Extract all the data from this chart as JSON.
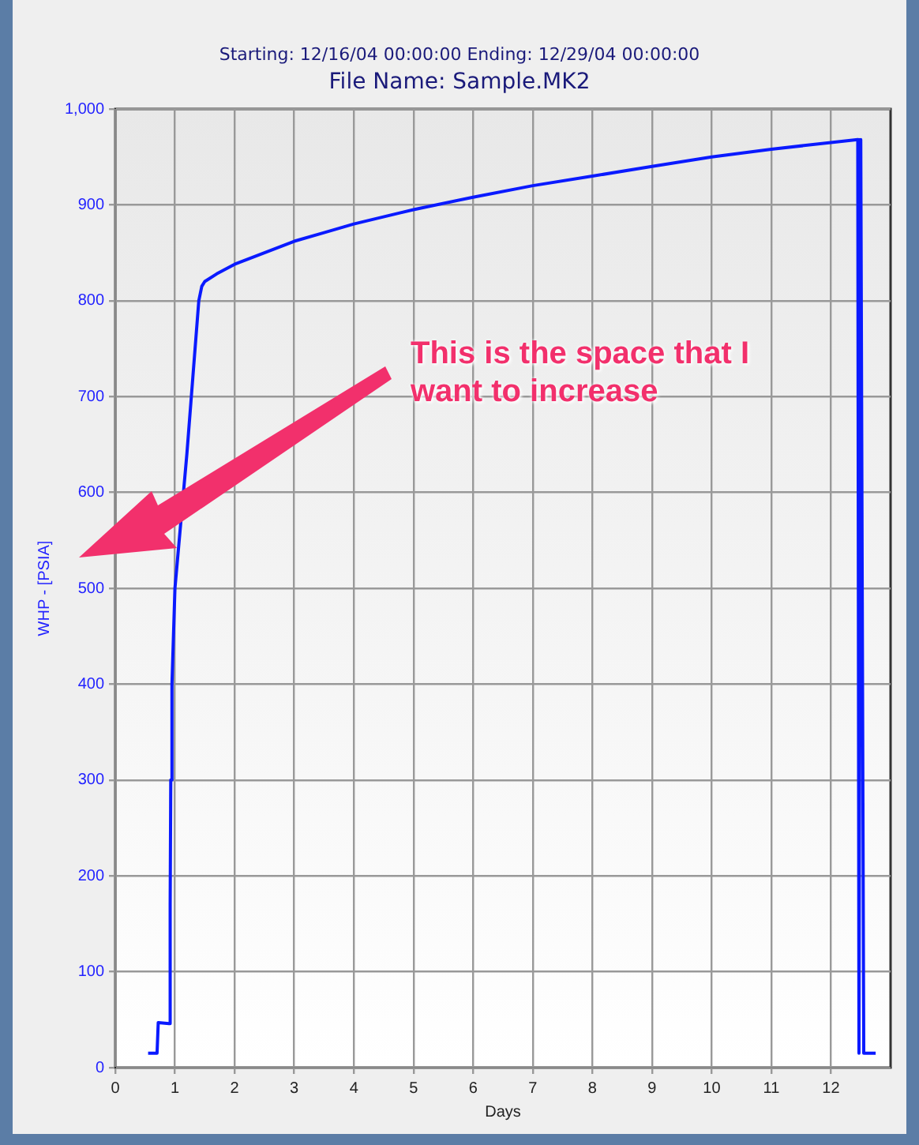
{
  "chart_data": {
    "type": "line",
    "title": "File Name: Sample.MK2",
    "subtitle": "Starting: 12/16/04 00:00:00  Ending: 12/29/04 00:00:00",
    "xlabel": "Days",
    "ylabel": "WHP - [PSIA]",
    "annotations": [
      "This is the space that I want to increase"
    ],
    "x": [
      0.55,
      0.7,
      0.72,
      0.9,
      0.92,
      0.93,
      0.95,
      1.0,
      1.2,
      1.3,
      1.4,
      1.45,
      1.5,
      1.7,
      2,
      2.5,
      3,
      3.5,
      4,
      5,
      6,
      7,
      8,
      9,
      10,
      11,
      12,
      12.45,
      12.47,
      12.5,
      12.52,
      12.55,
      12.75
    ],
    "series": [
      {
        "color": "#0a1aff",
        "values": [
          15,
          15,
          47,
          46,
          170,
          300,
          400,
          500,
          640,
          720,
          800,
          815,
          820,
          828,
          838,
          850,
          862,
          871,
          880,
          895,
          908,
          920,
          930,
          940,
          950,
          958,
          965,
          968,
          15,
          968,
          968,
          15,
          15
        ]
      }
    ],
    "xlim": [
      0,
      13
    ],
    "xticks": [
      0,
      1,
      2,
      3,
      4,
      5,
      6,
      7,
      8,
      9,
      10,
      11,
      12
    ],
    "ylim": [
      0,
      1000
    ],
    "yticks": [
      0,
      100,
      200,
      300,
      400,
      500,
      600,
      700,
      800,
      900,
      {
        "value": 1000,
        "label": "1,000"
      }
    ],
    "grid": true,
    "legend": false,
    "marker": "none",
    "line_style": "solid"
  }
}
